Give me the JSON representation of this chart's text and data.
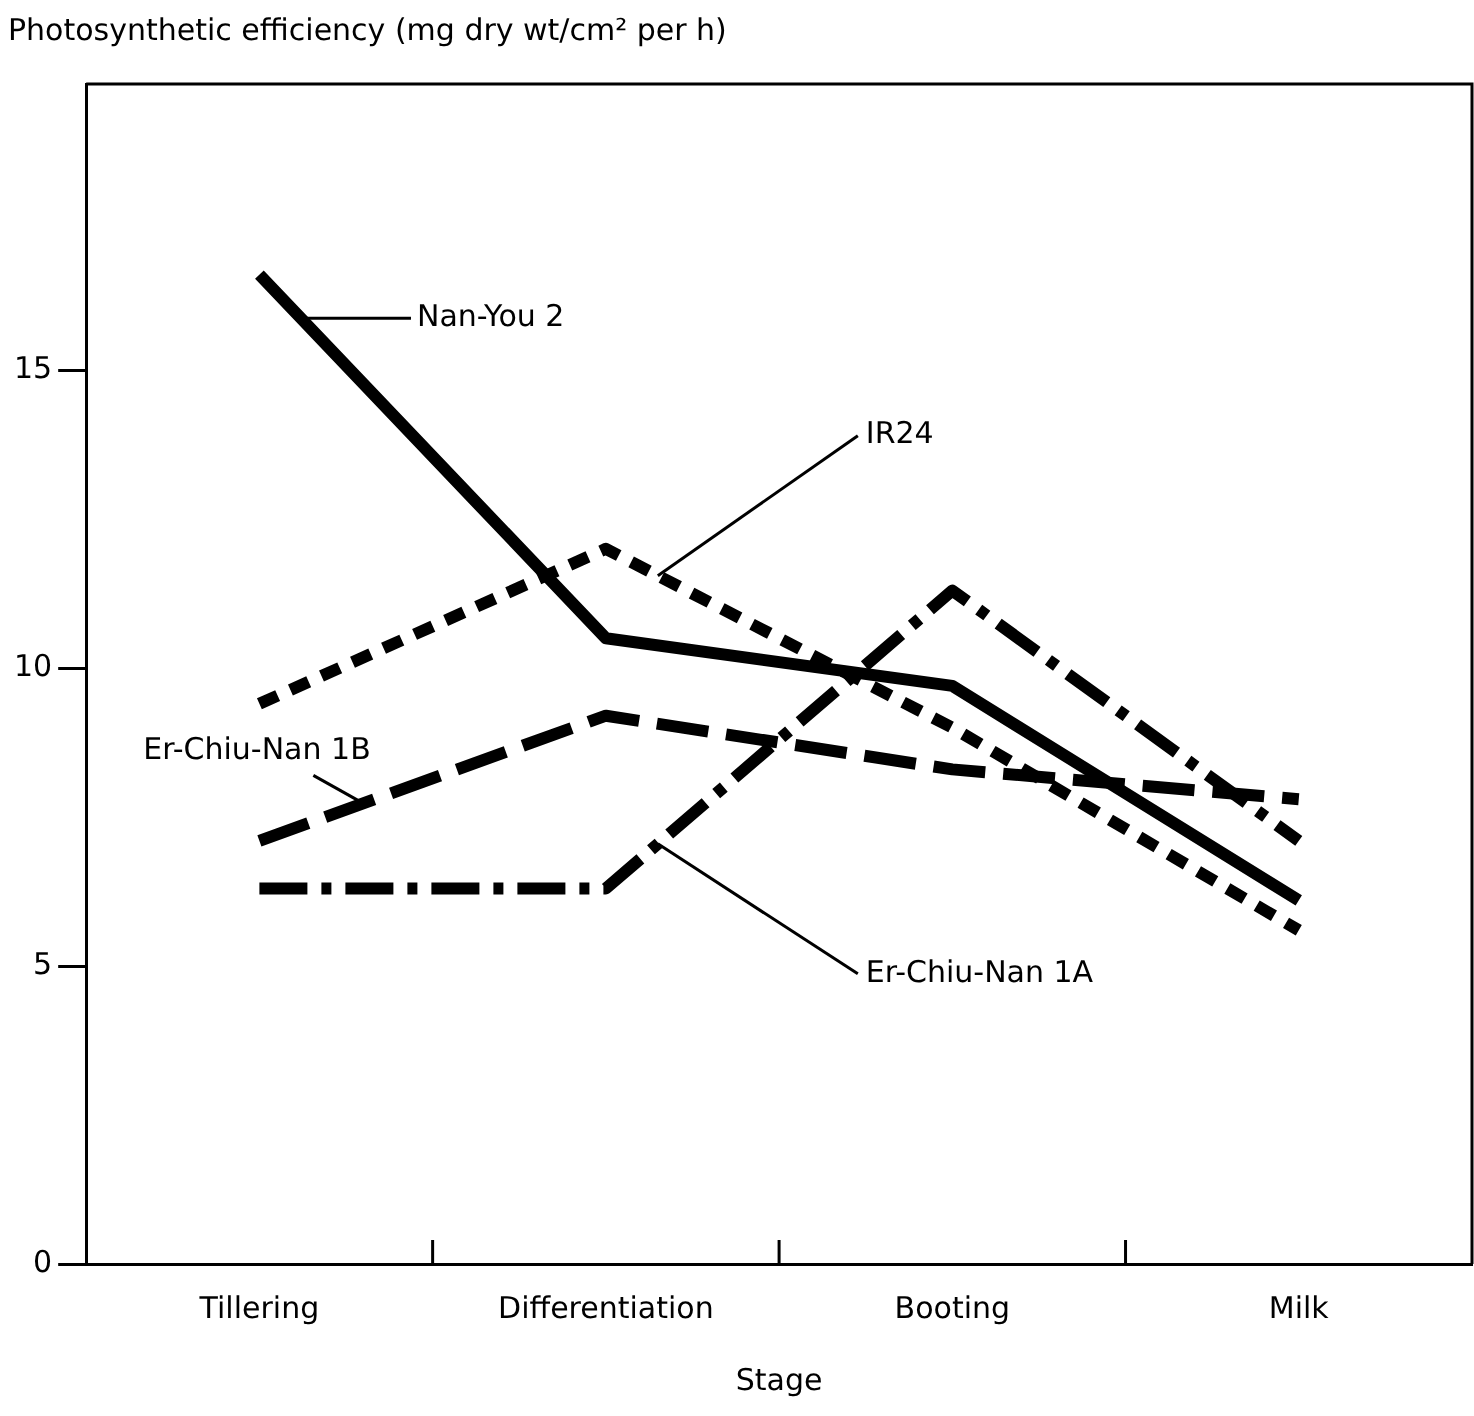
{
  "chart_data": {
    "type": "line",
    "ylabel": "Photosynthetic efficiency (mg dry wt/cm² per h)",
    "xlabel": "Stage",
    "categories": [
      "Tillering",
      "Differentiation",
      "Booting",
      "Milk"
    ],
    "series": [
      {
        "name": "Nan-You 2",
        "color": "#000000",
        "line_style": "solid",
        "values": [
          16.6,
          10.5,
          9.7,
          6.1
        ]
      },
      {
        "name": "IR24",
        "color": "#000000",
        "line_style": "dotted",
        "values": [
          9.4,
          12.0,
          9.0,
          5.6
        ]
      },
      {
        "name": "Er-Chiu-Nan 1B",
        "color": "#000000",
        "line_style": "dashed",
        "values": [
          7.1,
          9.2,
          8.3,
          7.8
        ]
      },
      {
        "name": "Er-Chiu-Nan 1A",
        "color": "#000000",
        "line_style": "dashdot",
        "values": [
          6.3,
          6.3,
          11.3,
          7.1
        ]
      }
    ],
    "ylim": [
      0,
      19.8
    ],
    "yticks": [
      0,
      5,
      10,
      15
    ],
    "grid": false,
    "marker": "none"
  }
}
